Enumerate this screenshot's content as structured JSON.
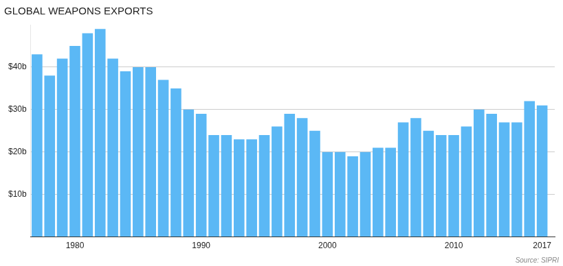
{
  "chart_data": {
    "type": "bar",
    "title": "GLOBAL WEAPONS EXPORTS",
    "annotation": "Source: SIPRI",
    "x": [
      1977,
      1978,
      1979,
      1980,
      1981,
      1982,
      1983,
      1984,
      1985,
      1986,
      1987,
      1988,
      1989,
      1990,
      1991,
      1992,
      1993,
      1994,
      1995,
      1996,
      1997,
      1998,
      1999,
      2000,
      2001,
      2002,
      2003,
      2004,
      2005,
      2006,
      2007,
      2008,
      2009,
      2010,
      2011,
      2012,
      2013,
      2014,
      2015,
      2016,
      2017
    ],
    "values": [
      43,
      38,
      42,
      45,
      48,
      49,
      42,
      39,
      40,
      40,
      37,
      35,
      30,
      29,
      24,
      24,
      23,
      23,
      24,
      26,
      29,
      28,
      25,
      20,
      20,
      19,
      20,
      21,
      21,
      27,
      28,
      25,
      24,
      24,
      26,
      30,
      29,
      27,
      27,
      32,
      31
    ],
    "color": "#5BB8F5",
    "xlim": [
      1976.5,
      2018.0
    ],
    "xticks": [
      1980,
      1990,
      2000,
      2010,
      2017
    ],
    "ylim": [
      0,
      50
    ],
    "yticks": [
      {
        "value": 0,
        "label": null
      },
      {
        "value": 10,
        "label": "$10b"
      },
      {
        "value": 20,
        "label": "$20b"
      },
      {
        "value": 30,
        "label": "$30b"
      },
      {
        "value": 40,
        "label": "$40b"
      }
    ],
    "grid": "y"
  }
}
